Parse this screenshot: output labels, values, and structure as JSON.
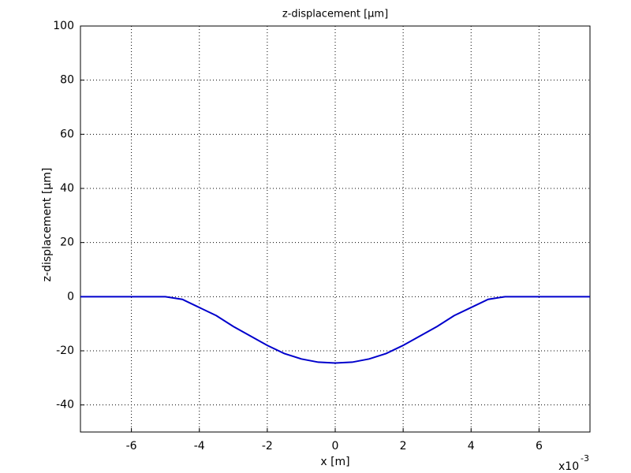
{
  "chart_data": {
    "type": "line",
    "title": "z-displacement [µm]",
    "x_label": "x [m]",
    "y_label": "z-displacement [µm]",
    "x_scale_label": "x10",
    "x_scale_exponent": "-3",
    "x": [
      -7.5,
      -5,
      -4.5,
      -4,
      -3.5,
      -3,
      -2.5,
      -2,
      -1.5,
      -1,
      -0.5,
      0,
      0.5,
      1,
      1.5,
      2,
      2.5,
      3,
      3.5,
      4,
      4.5,
      5,
      7.5
    ],
    "series": [
      {
        "color": "#0000cc",
        "values": [
          0,
          0,
          -1,
          -4,
          -7,
          -11,
          -14.5,
          -18,
          -21,
          -23,
          -24.2,
          -24.5,
          -24.2,
          -23,
          -21,
          -18,
          -14.5,
          -11,
          -7,
          -4,
          -1,
          0,
          0
        ]
      }
    ],
    "xlim": [
      -7.5,
      7.5
    ],
    "xticks": [
      -6,
      -4,
      -2,
      0,
      2,
      4,
      6
    ],
    "ylim": [
      -50,
      100
    ],
    "yticks": [
      -40,
      -20,
      0,
      20,
      40,
      60,
      80,
      100
    ],
    "grid": true
  }
}
